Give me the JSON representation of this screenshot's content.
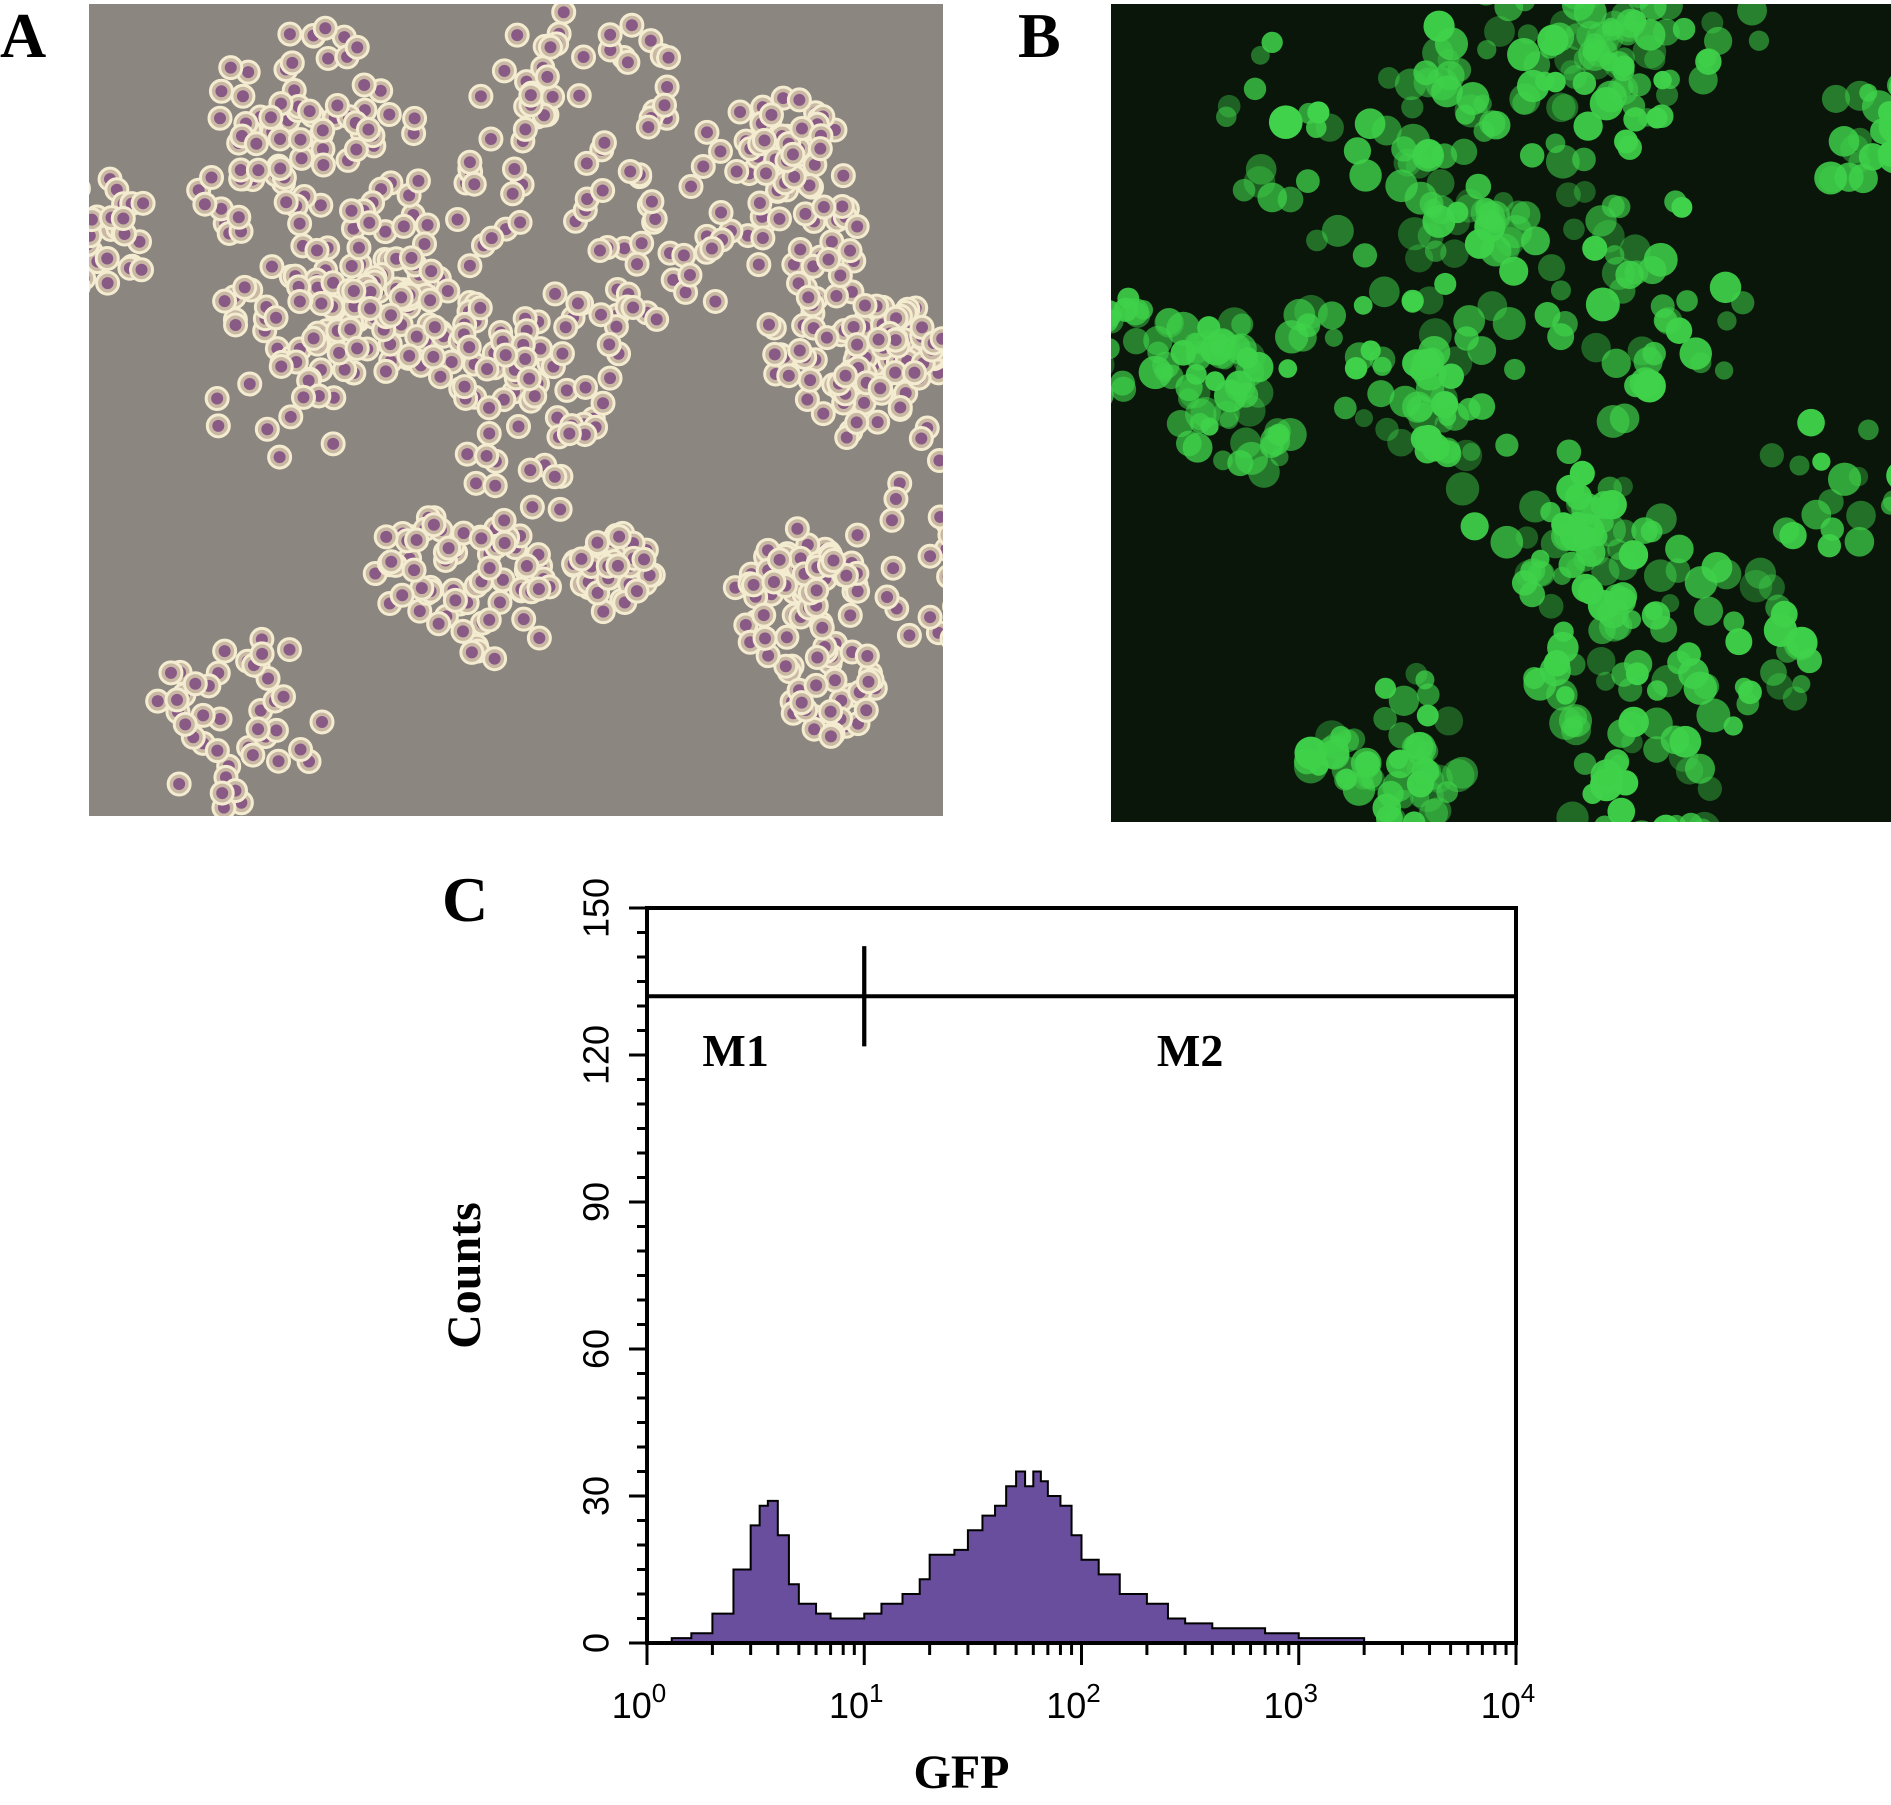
{
  "panels": {
    "a": {
      "letter": "A",
      "image": "brightfield-micrograph"
    },
    "b": {
      "letter": "B",
      "image": "gfp-fluorescence-micrograph"
    },
    "c": {
      "letter": "C"
    }
  },
  "colors": {
    "histogram_fill": "#6a4e9e",
    "fluorescence": "#3fd24a",
    "brightfield_bg": "#8c8680"
  },
  "chart_data": {
    "type": "histogram",
    "title": "",
    "xlabel": "GFP",
    "ylabel": "Counts",
    "xscale": "log",
    "xlim": [
      1,
      10000
    ],
    "ylim": [
      0,
      150
    ],
    "x_ticks": [
      {
        "base": "10",
        "exp": "0",
        "value": 1
      },
      {
        "base": "10",
        "exp": "1",
        "value": 10
      },
      {
        "base": "10",
        "exp": "2",
        "value": 100
      },
      {
        "base": "10",
        "exp": "3",
        "value": 1000
      },
      {
        "base": "10",
        "exp": "4",
        "value": 10000
      }
    ],
    "y_ticks": [
      "0",
      "30",
      "60",
      "90",
      "120",
      "150"
    ],
    "y_tick_values": [
      0,
      30,
      60,
      90,
      120,
      150
    ],
    "gates": [
      {
        "label": "M1",
        "x_start": 1,
        "x_end": 10,
        "y": 132
      },
      {
        "label": "M2",
        "x_start": 10,
        "x_end": 10000,
        "y": 132
      }
    ],
    "series": [
      {
        "x": [
          1,
          1.3,
          1.6,
          2.0,
          2.5,
          3.0,
          3.3,
          3.6,
          4.0,
          4.5,
          5.0,
          6.0,
          7.0,
          8.0,
          10,
          12,
          15,
          18,
          20,
          23,
          26,
          30,
          35,
          40,
          45,
          50,
          55,
          60,
          65,
          70,
          80,
          90,
          100,
          120,
          150,
          200,
          250,
          300,
          400,
          500,
          700,
          1000,
          1500,
          2000,
          3000,
          5000,
          10000
        ],
        "values": [
          0,
          1,
          2,
          6,
          15,
          24,
          28,
          29,
          22,
          12,
          8,
          6,
          5,
          5,
          6,
          8,
          10,
          13,
          18,
          18,
          19,
          23,
          26,
          28,
          32,
          35,
          32,
          35,
          33,
          30,
          28,
          22,
          17,
          14,
          10,
          8,
          5,
          4,
          3,
          3,
          2,
          1,
          1,
          0,
          0,
          0,
          0
        ]
      }
    ]
  }
}
